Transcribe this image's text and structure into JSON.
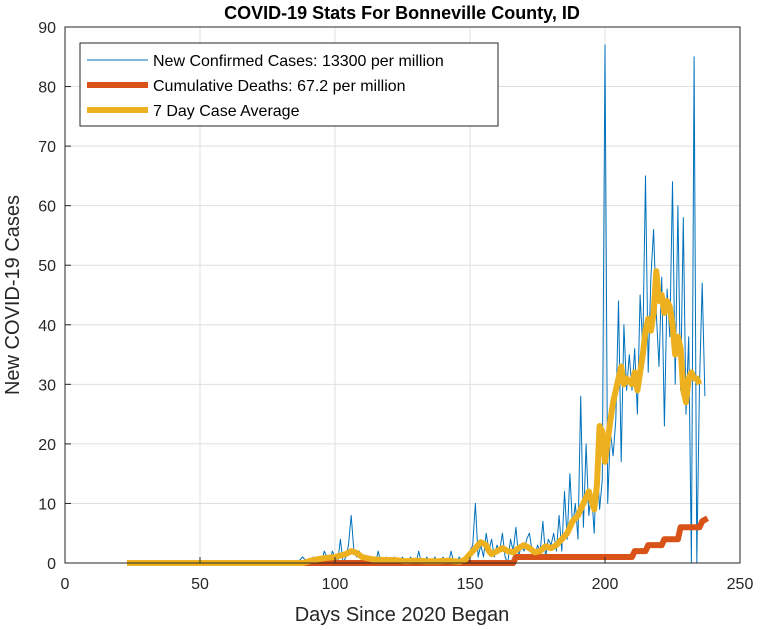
{
  "chart_data": {
    "type": "line",
    "title": "COVID-19 Stats For Bonneville County, ID",
    "xlabel": "Days Since 2020 Began",
    "ylabel": "New COVID-19 Cases",
    "xlim": [
      0,
      250
    ],
    "ylim": [
      0,
      90
    ],
    "xticks": [
      0,
      50,
      100,
      150,
      200,
      250
    ],
    "yticks": [
      0,
      10,
      20,
      30,
      40,
      50,
      60,
      70,
      80,
      90
    ],
    "grid": true,
    "legend_position": "top-left",
    "series": [
      {
        "name": "New Confirmed Cases: 13300 per million",
        "color": "#0072BD",
        "points": [
          [
            23,
            0
          ],
          [
            86,
            0
          ],
          [
            88,
            1
          ],
          [
            90,
            0
          ],
          [
            92,
            1
          ],
          [
            93,
            0
          ],
          [
            94,
            1
          ],
          [
            95,
            0
          ],
          [
            96,
            2
          ],
          [
            97,
            1
          ],
          [
            98,
            0
          ],
          [
            99,
            2
          ],
          [
            100,
            1
          ],
          [
            101,
            0
          ],
          [
            102,
            4
          ],
          [
            103,
            0
          ],
          [
            104,
            1
          ],
          [
            105,
            3
          ],
          [
            106,
            8
          ],
          [
            107,
            2
          ],
          [
            108,
            1
          ],
          [
            109,
            2
          ],
          [
            110,
            1
          ],
          [
            111,
            0
          ],
          [
            112,
            1
          ],
          [
            113,
            0
          ],
          [
            114,
            1
          ],
          [
            115,
            0
          ],
          [
            116,
            2
          ],
          [
            117,
            0
          ],
          [
            118,
            0
          ],
          [
            119,
            1
          ],
          [
            120,
            0
          ],
          [
            121,
            0
          ],
          [
            122,
            1
          ],
          [
            123,
            0
          ],
          [
            124,
            0
          ],
          [
            125,
            1
          ],
          [
            126,
            0
          ],
          [
            127,
            0
          ],
          [
            128,
            1
          ],
          [
            129,
            0
          ],
          [
            130,
            0
          ],
          [
            131,
            2
          ],
          [
            132,
            0
          ],
          [
            133,
            0
          ],
          [
            134,
            1
          ],
          [
            135,
            0
          ],
          [
            136,
            0
          ],
          [
            137,
            1
          ],
          [
            138,
            0
          ],
          [
            139,
            0
          ],
          [
            140,
            1
          ],
          [
            141,
            0
          ],
          [
            142,
            0
          ],
          [
            143,
            2
          ],
          [
            144,
            0
          ],
          [
            145,
            0
          ],
          [
            146,
            1
          ],
          [
            147,
            0
          ],
          [
            148,
            0
          ],
          [
            149,
            1
          ],
          [
            150,
            2
          ],
          [
            151,
            3
          ],
          [
            152,
            10
          ],
          [
            153,
            1
          ],
          [
            154,
            3
          ],
          [
            155,
            1
          ],
          [
            156,
            5
          ],
          [
            157,
            2
          ],
          [
            158,
            4
          ],
          [
            159,
            1
          ],
          [
            160,
            3
          ],
          [
            161,
            2
          ],
          [
            162,
            5
          ],
          [
            163,
            1
          ],
          [
            164,
            0
          ],
          [
            165,
            4
          ],
          [
            166,
            2
          ],
          [
            167,
            6
          ],
          [
            168,
            1
          ],
          [
            169,
            3
          ],
          [
            170,
            2
          ],
          [
            171,
            4
          ],
          [
            172,
            5
          ],
          [
            173,
            2
          ],
          [
            174,
            1
          ],
          [
            175,
            3
          ],
          [
            176,
            2
          ],
          [
            177,
            7
          ],
          [
            178,
            1
          ],
          [
            179,
            4
          ],
          [
            180,
            3
          ],
          [
            181,
            5
          ],
          [
            182,
            2
          ],
          [
            183,
            8
          ],
          [
            184,
            2
          ],
          [
            185,
            12
          ],
          [
            186,
            4
          ],
          [
            187,
            15
          ],
          [
            188,
            6
          ],
          [
            189,
            10
          ],
          [
            190,
            4
          ],
          [
            191,
            28
          ],
          [
            192,
            6
          ],
          [
            193,
            20
          ],
          [
            194,
            8
          ],
          [
            195,
            12
          ],
          [
            196,
            5
          ],
          [
            197,
            18
          ],
          [
            198,
            9
          ],
          [
            199,
            14
          ],
          [
            200,
            87
          ],
          [
            201,
            10
          ],
          [
            202,
            22
          ],
          [
            203,
            18
          ],
          [
            204,
            24
          ],
          [
            205,
            44
          ],
          [
            206,
            17
          ],
          [
            207,
            40
          ],
          [
            208,
            29
          ],
          [
            209,
            35
          ],
          [
            210,
            29
          ],
          [
            211,
            36
          ],
          [
            212,
            25
          ],
          [
            213,
            45
          ],
          [
            214,
            36
          ],
          [
            215,
            65
          ],
          [
            216,
            32
          ],
          [
            217,
            48
          ],
          [
            218,
            56
          ],
          [
            219,
            42
          ],
          [
            220,
            33
          ],
          [
            221,
            48
          ],
          [
            222,
            23
          ],
          [
            223,
            46
          ],
          [
            224,
            38
          ],
          [
            225,
            64
          ],
          [
            226,
            30
          ],
          [
            227,
            60
          ],
          [
            228,
            29
          ],
          [
            229,
            58
          ],
          [
            230,
            25
          ],
          [
            231,
            38
          ],
          [
            232,
            0
          ],
          [
            233,
            85
          ],
          [
            234,
            0
          ],
          [
            235,
            30
          ],
          [
            236,
            47
          ],
          [
            237,
            28
          ]
        ]
      },
      {
        "name": "Cumulative Deaths: 67.2 per million",
        "color": "#D95319",
        "points": [
          [
            23,
            0
          ],
          [
            166,
            0
          ],
          [
            167,
            1
          ],
          [
            207,
            1
          ],
          [
            208,
            1
          ],
          [
            210,
            1
          ],
          [
            211,
            2
          ],
          [
            215,
            2
          ],
          [
            216,
            3
          ],
          [
            221,
            3
          ],
          [
            222,
            4
          ],
          [
            227,
            4
          ],
          [
            228,
            6
          ],
          [
            235,
            6
          ],
          [
            236,
            7
          ],
          [
            238,
            7.5
          ]
        ]
      },
      {
        "name": "7 Day Case Average",
        "color": "#EDB120",
        "points": [
          [
            23,
            0
          ],
          [
            88,
            0
          ],
          [
            92,
            0.5
          ],
          [
            96,
            0.8
          ],
          [
            100,
            1
          ],
          [
            104,
            1.5
          ],
          [
            106,
            2
          ],
          [
            108,
            1.7
          ],
          [
            110,
            1
          ],
          [
            114,
            0.6
          ],
          [
            118,
            0.5
          ],
          [
            122,
            0.5
          ],
          [
            126,
            0.3
          ],
          [
            130,
            0.4
          ],
          [
            134,
            0.3
          ],
          [
            138,
            0.3
          ],
          [
            142,
            0.4
          ],
          [
            146,
            0.2
          ],
          [
            148,
            0.5
          ],
          [
            150,
            1.5
          ],
          [
            152,
            2.5
          ],
          [
            154,
            3.5
          ],
          [
            156,
            3
          ],
          [
            157,
            2
          ],
          [
            158,
            1.5
          ],
          [
            160,
            2
          ],
          [
            162,
            2.5
          ],
          [
            164,
            2
          ],
          [
            166,
            1.8
          ],
          [
            168,
            2.5
          ],
          [
            170,
            3
          ],
          [
            172,
            2.5
          ],
          [
            174,
            1.8
          ],
          [
            176,
            2
          ],
          [
            178,
            2.8
          ],
          [
            180,
            2.5
          ],
          [
            182,
            3
          ],
          [
            184,
            4
          ],
          [
            186,
            5
          ],
          [
            188,
            7
          ],
          [
            190,
            8
          ],
          [
            192,
            10
          ],
          [
            194,
            12
          ],
          [
            196,
            9
          ],
          [
            197,
            13
          ],
          [
            198,
            23
          ],
          [
            199,
            22
          ],
          [
            200,
            17
          ],
          [
            202,
            24
          ],
          [
            203,
            27
          ],
          [
            205,
            31
          ],
          [
            206,
            33
          ],
          [
            207,
            30
          ],
          [
            208,
            31
          ],
          [
            210,
            30
          ],
          [
            211,
            32
          ],
          [
            212,
            29
          ],
          [
            213,
            32
          ],
          [
            214,
            35
          ],
          [
            215,
            39
          ],
          [
            216,
            41
          ],
          [
            217,
            39
          ],
          [
            218,
            42
          ],
          [
            219,
            49
          ],
          [
            220,
            44
          ],
          [
            221,
            45
          ],
          [
            222,
            42
          ],
          [
            223,
            44
          ],
          [
            224,
            43
          ],
          [
            225,
            40
          ],
          [
            226,
            35
          ],
          [
            227,
            38
          ],
          [
            228,
            36
          ],
          [
            229,
            29
          ],
          [
            230,
            27
          ],
          [
            231,
            31
          ],
          [
            232,
            32
          ],
          [
            233,
            31
          ],
          [
            234,
            31
          ],
          [
            235,
            30
          ]
        ]
      }
    ]
  }
}
